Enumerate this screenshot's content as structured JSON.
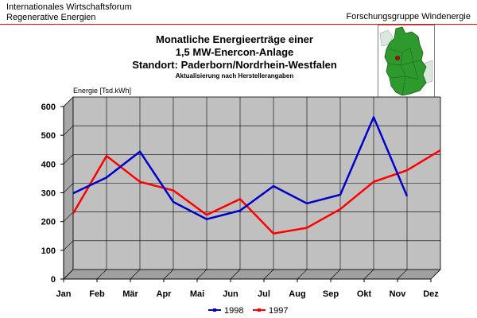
{
  "header": {
    "left_line1": "Internationales Wirtschaftsforum",
    "left_line2": "Regenerative Energien",
    "right": "Forschungsgruppe Windenergie"
  },
  "colors": {
    "rule": "#ff0000",
    "series_1998": "#0000cc",
    "series_1997": "#ff0000",
    "plot_bg": "#c0c0c0"
  },
  "map": {
    "icon": "germany-map-icon",
    "marker_color": "#cc0000"
  },
  "chart_data": {
    "type": "line",
    "title": "Monatliche Energieerträge einer",
    "title_line2": "1,5 MW-Enercon-Anlage",
    "title_line3": "Standort: Paderborn/Nordrhein-Westfalen",
    "subtitle": "Aktualisierung nach Herstellerangaben",
    "ylabel": "Energie [Tsd.kWh]",
    "xlabel": "",
    "ylim": [
      0,
      600
    ],
    "yticks": [
      0,
      100,
      200,
      300,
      400,
      500,
      600
    ],
    "grid": true,
    "legend_position": "bottom",
    "categories": [
      "Jan",
      "Feb",
      "Mär",
      "Apr",
      "Mai",
      "Jun",
      "Jul",
      "Aug",
      "Sep",
      "Okt",
      "Nov",
      "Dez"
    ],
    "series": [
      {
        "name": "1998",
        "color": "#0000cc",
        "values": [
          265,
          320,
          410,
          235,
          175,
          205,
          290,
          230,
          260,
          530,
          255,
          null
        ]
      },
      {
        "name": "1997",
        "color": "#ff0000",
        "values": [
          195,
          395,
          305,
          275,
          190,
          245,
          125,
          145,
          210,
          305,
          345,
          415
        ]
      }
    ]
  }
}
